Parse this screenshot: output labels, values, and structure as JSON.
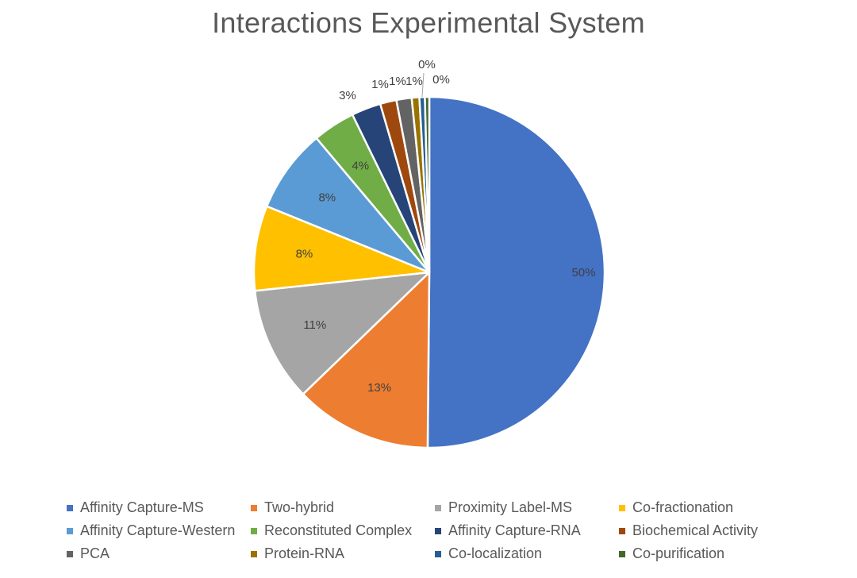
{
  "chart_data": {
    "type": "pie",
    "title": "Interactions Experimental System",
    "legend_position": "bottom",
    "slices": [
      {
        "name": "Affinity Capture-MS",
        "value": 50,
        "label": "50%",
        "color": "#4472C4"
      },
      {
        "name": "Two-hybrid",
        "value": 12.6,
        "label": "13%",
        "color": "#ED7D31"
      },
      {
        "name": "Proximity Label-MS",
        "value": 10.5,
        "label": "11%",
        "color": "#A5A5A5"
      },
      {
        "name": "Co-fractionation",
        "value": 7.8,
        "label": "8%",
        "color": "#FFC000"
      },
      {
        "name": "Affinity Capture-Western",
        "value": 7.7,
        "label": "8%",
        "color": "#5B9BD5"
      },
      {
        "name": "Reconstituted Complex",
        "value": 3.9,
        "label": "4%",
        "color": "#70AD47"
      },
      {
        "name": "Affinity Capture-RNA",
        "value": 2.7,
        "label": "3%",
        "color": "#264478"
      },
      {
        "name": "Biochemical Activity",
        "value": 1.5,
        "label": "1%",
        "color": "#9E480E"
      },
      {
        "name": "PCA",
        "value": 1.4,
        "label": "1%",
        "color": "#636363"
      },
      {
        "name": "Protein-RNA",
        "value": 0.7,
        "label": "1%",
        "color": "#997300"
      },
      {
        "name": "Co-localization",
        "value": 0.5,
        "label": "0%",
        "color": "#255E91"
      },
      {
        "name": "Co-purification",
        "value": 0.4,
        "label": "0%",
        "color": "#43682B"
      }
    ]
  }
}
